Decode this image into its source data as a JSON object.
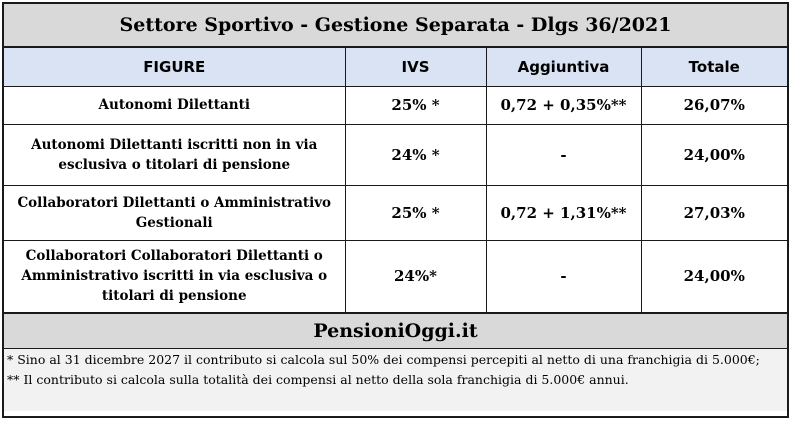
{
  "title": "Settore Sportivo - Gestione Separata - Dlgs 36/2021",
  "table": {
    "headers": [
      "FIGURE",
      "IVS",
      "Aggiuntiva",
      "Totale"
    ],
    "rows": [
      {
        "figure": "Autonomi Dilettanti",
        "ivs": "25% *",
        "aggiuntiva": "0,72 + 0,35%**",
        "totale": "26,07%"
      },
      {
        "figure": "Autonomi Dilettanti iscritti non in via esclusiva o titolari di pensione",
        "ivs": "24% *",
        "aggiuntiva": "-",
        "totale": "24,00%"
      },
      {
        "figure": "Collaboratori Dilettanti o Amministrativo Gestionali",
        "ivs": "25% *",
        "aggiuntiva": "0,72 + 1,31%**",
        "totale": "27,03%"
      },
      {
        "figure": "Collaboratori Collaboratori Dilettanti o Amministrativo iscritti in via esclusiva o titolari di pensione",
        "ivs": "24%*",
        "aggiuntiva": "-",
        "totale": "24,00%"
      }
    ]
  },
  "brand": "PensioniOggi.it",
  "notes": [
    "* Sino al 31 dicembre 2027 il contributo si calcola sul 50% dei compensi percepiti al netto di una franchigia di 5.000€;",
    "** Il contributo si calcola sulla totalità dei compensi al netto della sola franchigia di 5.000€ annui."
  ]
}
